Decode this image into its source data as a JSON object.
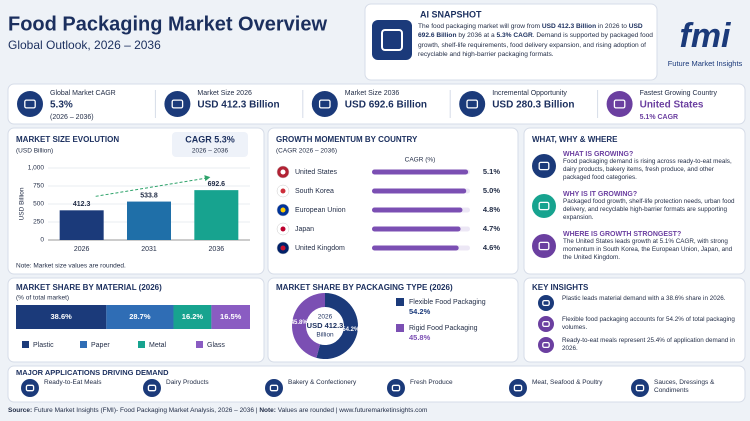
{
  "header": {
    "title": "Food Packaging Market Overview",
    "subtitle": "Global Outlook, 2026 – 2036"
  },
  "snapshot": {
    "title": "AI SNAPSHOT",
    "text": [
      "The food packaging market will grow from ",
      "USD 412.3 Billion",
      " in 2026 to ",
      "USD 692.6 Billion",
      " by 2036 at a ",
      "5.3% CAGR",
      ". Demand is supported by packaged food growth, shelf-life requirements, food delivery expansion, and rising adoption of recyclable and high-barrier packaging formats."
    ]
  },
  "logo": {
    "mark": "fmi",
    "name": "Future Market Insights"
  },
  "kpis": [
    {
      "label": "Global Market CAGR",
      "value": "5.3%",
      "note": "(2026 – 2036)"
    },
    {
      "label": "Market Size 2026",
      "value": "USD 412.3 Billion"
    },
    {
      "label": "Market Size 2036",
      "value": "USD 692.6 Billion"
    },
    {
      "label": "Incremental Opportunity",
      "value": "USD 280.3 Billion"
    },
    {
      "label": "Fastest Growing Country",
      "value": "United States",
      "note": "5.1% CAGR"
    }
  ],
  "chart_data": [
    {
      "type": "bar",
      "title": "MARKET SIZE EVOLUTION",
      "subtitle": "(USD Billion)",
      "badge": {
        "title": "CAGR 5.3%",
        "note": "2026 – 2036"
      },
      "ylabel": "USD Billion",
      "categories": [
        "2026",
        "2031",
        "2036"
      ],
      "values": [
        412.3,
        533.8,
        692.6
      ],
      "colors": [
        "#1b3a7a",
        "#1f6fa8",
        "#17a38f"
      ],
      "ylim": [
        0,
        1000
      ],
      "yticks": [
        0,
        250,
        500,
        750,
        {
          "value": 1000,
          "label": "1,000"
        }
      ],
      "grid": true,
      "note": "Note: Market size values are rounded."
    },
    {
      "type": "hbar",
      "title": "GROWTH MOMENTUM BY COUNTRY",
      "subtitle": "(CAGR 2026 – 2036)",
      "value_header": "CAGR (%)",
      "categories": [
        "United States",
        "South Korea",
        "European Union",
        "Japan",
        "United Kingdom"
      ],
      "values": [
        5.1,
        5.0,
        4.8,
        4.7,
        4.6
      ],
      "value_labels": [
        "5.1%",
        "5.0%",
        "4.8%",
        "4.7%",
        "4.6%"
      ],
      "color": "#7b4fb3",
      "xlim": [
        0,
        5.2
      ]
    },
    {
      "type": "stacked_bar",
      "title": "MARKET SHARE BY MATERIAL (2026)",
      "subtitle": "(% of total market)",
      "xlim": [
        0,
        100
      ],
      "legend": "bottom",
      "series": [
        {
          "name": "Plastic",
          "color": "#1b3a7a",
          "values": [
            38.6
          ],
          "value_labels": [
            "38.6%"
          ]
        },
        {
          "name": "Paper",
          "color": "#2f6db5",
          "values": [
            28.7
          ],
          "value_labels": [
            "28.7%"
          ]
        },
        {
          "name": "Metal",
          "color": "#17a38f",
          "values": [
            16.2
          ],
          "value_labels": [
            "16.2%"
          ]
        },
        {
          "name": "Glass",
          "color": "#8a5cc2",
          "values": [
            16.5
          ],
          "value_labels": [
            "16.5%"
          ]
        }
      ]
    },
    {
      "type": "donut",
      "title": "MARKET SHARE BY PACKAGING TYPE (2026)",
      "categories": [
        "Flexible Food Packaging",
        "Rigid Food Packaging"
      ],
      "values": [
        54.2,
        45.8
      ],
      "value_labels": [
        "54.2%",
        "45.8%"
      ],
      "colors": [
        "#1b3a7a",
        "#7b4fb3"
      ],
      "center": [
        "2026",
        "USD 412.3",
        "Billion"
      ],
      "legend": "right"
    }
  ],
  "why_where": {
    "title": "WHAT, WHY & WHERE",
    "items": [
      {
        "title": "WHAT IS GROWING?",
        "text": "Food packaging demand is rising across ready-to-eat meals, dairy products, bakery items, fresh produce, and other packaged food categories."
      },
      {
        "title": "WHY IS IT GROWING?",
        "text": "Packaged food growth, shelf-life protection needs, urban food delivery, and recyclable high-barrier formats are supporting expansion."
      },
      {
        "title": "WHERE IS GROWTH STRONGEST?",
        "text": "The United States leads growth at 5.1% CAGR, with strong momentum in South Korea, the European Union, Japan, and the United Kingdom."
      }
    ]
  },
  "insights": {
    "title": "KEY INSIGHTS",
    "items": [
      "Plastic leads material demand with a 38.6% share in 2026.",
      "Flexible food packaging accounts for 54.2% of total packaging volumes.",
      "Ready-to-eat meals represent 25.4% of application demand in 2026."
    ]
  },
  "applications": {
    "title": "MAJOR APPLICATIONS DRIVING DEMAND",
    "items": [
      "Ready-to-Eat Meals",
      "Dairy Products",
      "Bakery & Confectionery",
      "Fresh Produce",
      "Meat, Seafood & Poultry",
      "Sauces, Dressings & Condiments"
    ]
  },
  "footer": {
    "source_label": "Source:",
    "source": " Future Market Insights (FMI)- Food Packaging Market Analysis, 2026 – 2036 | ",
    "note_label": "Note:",
    "note": " Values are rounded | ",
    "url": "www.futuremarketinsights.com"
  }
}
